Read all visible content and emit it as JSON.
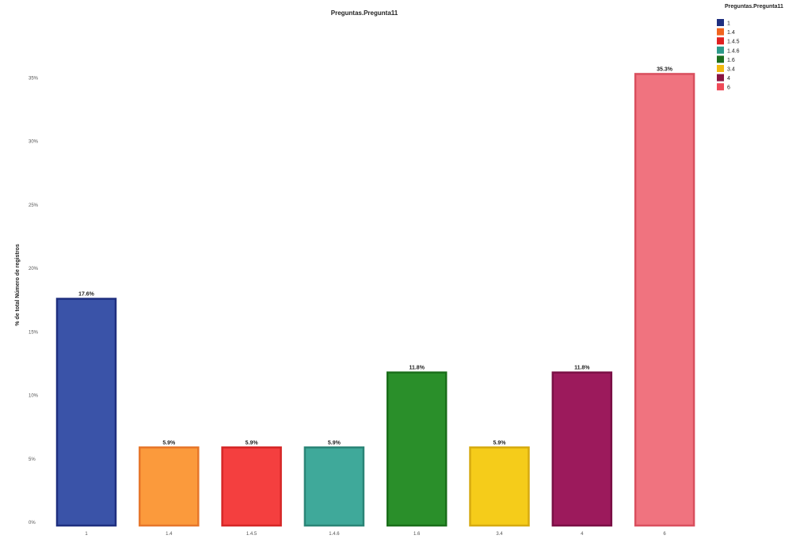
{
  "chart_data": {
    "type": "bar",
    "title": "Preguntas.Pregunta11",
    "xlabel": "",
    "ylabel": "% de total Número de registros",
    "categories": [
      "1",
      "1.4",
      "1.4.5",
      "1.4.6",
      "1.6",
      "3.4",
      "4",
      "6"
    ],
    "values": [
      17.6,
      5.9,
      5.9,
      5.9,
      11.8,
      5.9,
      11.8,
      35.3
    ],
    "data_labels": [
      "17.6%",
      "5.9%",
      "5.9%",
      "5.9%",
      "11.8%",
      "5.9%",
      "11.8%",
      "35.3%"
    ],
    "ylim": [
      0,
      40
    ],
    "yticks": [
      0,
      5,
      10,
      15,
      20,
      25,
      30,
      35
    ],
    "ytick_labels": [
      "0%",
      "5%",
      "10%",
      "15%",
      "20%",
      "25%",
      "30%",
      "35%"
    ],
    "grid": false,
    "legend": {
      "title": "Preguntas.Pregunta11",
      "position": "top-right",
      "entries": [
        "1",
        "1.4",
        "1.4.5",
        "1.4.6",
        "1.6",
        "3.4",
        "4",
        "6"
      ]
    },
    "bar_colors": [
      "#3a53a8",
      "#fb9a3c",
      "#f43f3f",
      "#3fa99a",
      "#2a8f2a",
      "#f5cc1a",
      "#9c1a5c",
      "#f0737f"
    ],
    "edge_colors": [
      "#1f2f7f",
      "#e6762a",
      "#d52626",
      "#2b8577",
      "#1a6e1a",
      "#d6aa10",
      "#7a0f45",
      "#d94f5e"
    ],
    "legend_colors": [
      "#1f2f7f",
      "#f0641e",
      "#e02020",
      "#2b9a8a",
      "#1d6e1d",
      "#f2b90f",
      "#8a1442",
      "#ef4a58"
    ]
  }
}
